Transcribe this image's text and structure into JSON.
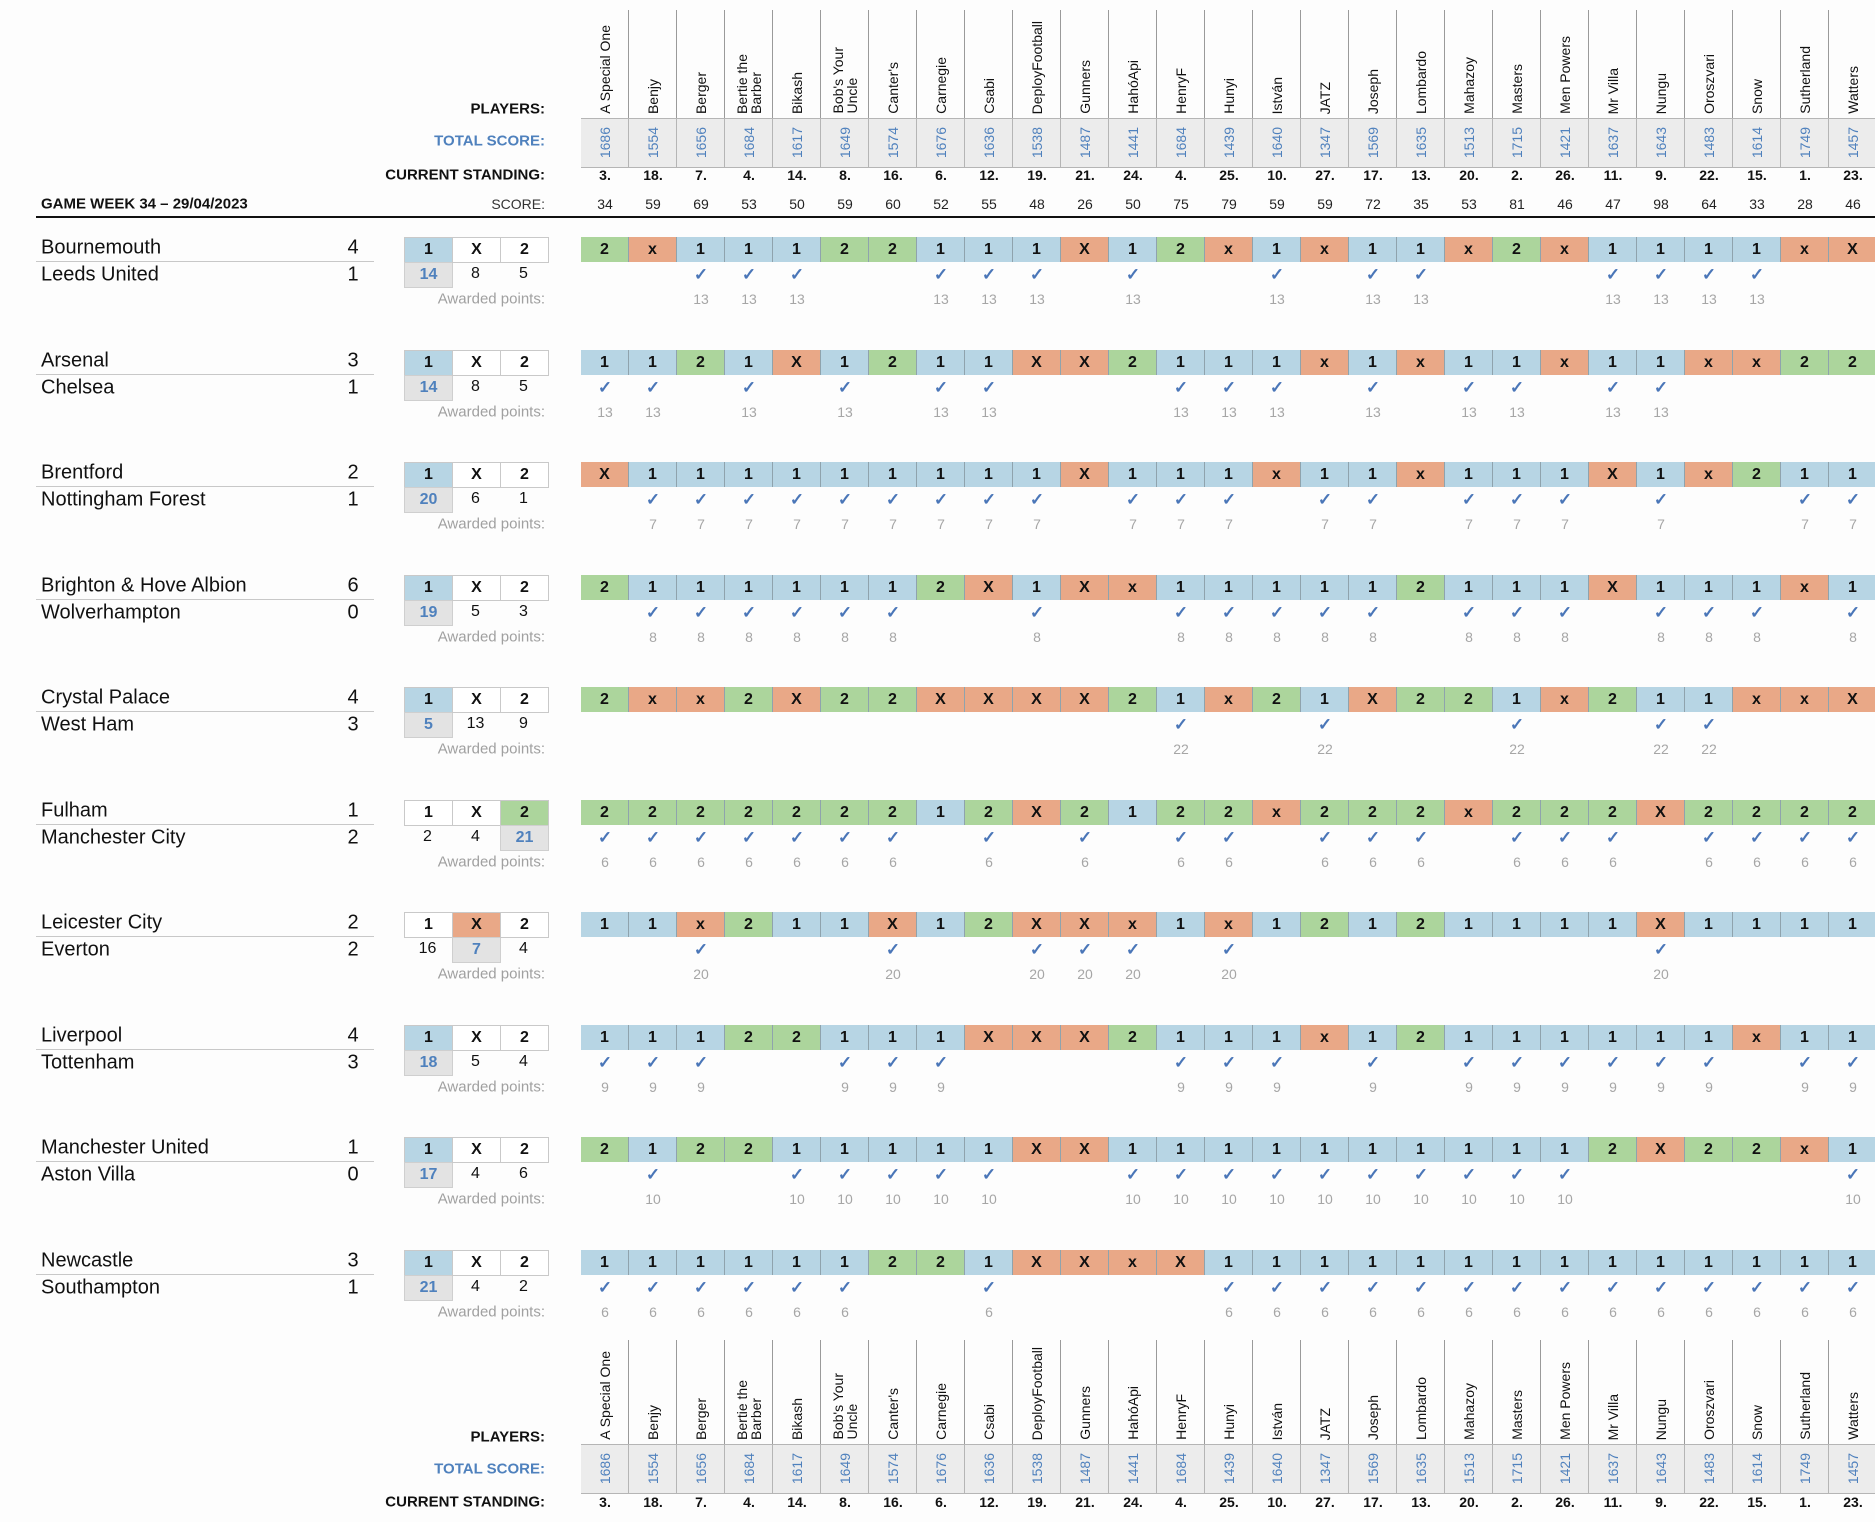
{
  "labels": {
    "players": "PLAYERS:",
    "total_score": "TOTAL SCORE:",
    "current_standing": "CURRENT STANDING:",
    "score": "SCORE:",
    "game_week": "GAME WEEK 34 – 29/04/2023",
    "awarded_points": "Awarded points:"
  },
  "colors": {
    "pick_1": "#b7d5e4",
    "pick_X": "#e9a887",
    "pick_2": "#acd59c",
    "total_score": "#4f81bd",
    "check": "#4a76b8"
  },
  "pick_options": [
    "1",
    "X",
    "2"
  ],
  "players": [
    {
      "name": "A Special One",
      "total": "1686",
      "standing": "3.",
      "score": "34"
    },
    {
      "name": "Benjy",
      "total": "1554",
      "standing": "18.",
      "score": "59"
    },
    {
      "name": "Berger",
      "total": "1656",
      "standing": "7.",
      "score": "69"
    },
    {
      "name": "Bertie the\nBarber",
      "total": "1684",
      "standing": "4.",
      "score": "53"
    },
    {
      "name": "Bikash",
      "total": "1617",
      "standing": "14.",
      "score": "50"
    },
    {
      "name": "Bob's Your\nUncle",
      "total": "1649",
      "standing": "8.",
      "score": "59"
    },
    {
      "name": "Canter's",
      "total": "1574",
      "standing": "16.",
      "score": "60"
    },
    {
      "name": "Carnegie",
      "total": "1676",
      "standing": "6.",
      "score": "52"
    },
    {
      "name": "Csabi",
      "total": "1636",
      "standing": "12.",
      "score": "55"
    },
    {
      "name": "DeployFootball",
      "total": "1538",
      "standing": "19.",
      "score": "48"
    },
    {
      "name": "Gunners",
      "total": "1487",
      "standing": "21.",
      "score": "26"
    },
    {
      "name": "HahóApi",
      "total": "1441",
      "standing": "24.",
      "score": "50"
    },
    {
      "name": "HenryF",
      "total": "1684",
      "standing": "4.",
      "score": "75"
    },
    {
      "name": "Hunyi",
      "total": "1439",
      "standing": "25.",
      "score": "79"
    },
    {
      "name": "István",
      "total": "1640",
      "standing": "10.",
      "score": "59"
    },
    {
      "name": "JATZ",
      "total": "1347",
      "standing": "27.",
      "score": "59"
    },
    {
      "name": "Joseph",
      "total": "1569",
      "standing": "17.",
      "score": "72"
    },
    {
      "name": "Lombardo",
      "total": "1635",
      "standing": "13.",
      "score": "35"
    },
    {
      "name": "Mahazoy",
      "total": "1513",
      "standing": "20.",
      "score": "53"
    },
    {
      "name": "Masters",
      "total": "1715",
      "standing": "2.",
      "score": "81"
    },
    {
      "name": "Men Powers",
      "total": "1421",
      "standing": "26.",
      "score": "46"
    },
    {
      "name": "Mr Villa",
      "total": "1637",
      "standing": "11.",
      "score": "47"
    },
    {
      "name": "Nungu",
      "total": "1643",
      "standing": "9.",
      "score": "98"
    },
    {
      "name": "Oroszvari",
      "total": "1483",
      "standing": "22.",
      "score": "64"
    },
    {
      "name": "Snow",
      "total": "1614",
      "standing": "15.",
      "score": "33"
    },
    {
      "name": "Sutherland",
      "total": "1749",
      "standing": "1.",
      "score": "28"
    },
    {
      "name": "Watters",
      "total": "1457",
      "standing": "23.",
      "score": "46"
    }
  ],
  "matches": [
    {
      "home": "Bournemouth",
      "away": "Leeds United",
      "home_goals": "4",
      "away_goals": "1",
      "result": "1",
      "counts": [
        "14",
        "8",
        "5"
      ],
      "points": "13",
      "picks": [
        "2",
        "x",
        "1",
        "1",
        "1",
        "2",
        "2",
        "1",
        "1",
        "1",
        "X",
        "1",
        "2",
        "x",
        "1",
        "x",
        "1",
        "1",
        "x",
        "2",
        "x",
        "1",
        "1",
        "1",
        "1",
        "x",
        "X"
      ]
    },
    {
      "home": "Arsenal",
      "away": "Chelsea",
      "home_goals": "3",
      "away_goals": "1",
      "result": "1",
      "counts": [
        "14",
        "8",
        "5"
      ],
      "points": "13",
      "picks": [
        "1",
        "1",
        "2",
        "1",
        "X",
        "1",
        "2",
        "1",
        "1",
        "X",
        "X",
        "2",
        "1",
        "1",
        "1",
        "x",
        "1",
        "x",
        "1",
        "1",
        "x",
        "1",
        "1",
        "x",
        "x",
        "2",
        "2"
      ]
    },
    {
      "home": "Brentford",
      "away": "Nottingham Forest",
      "home_goals": "2",
      "away_goals": "1",
      "result": "1",
      "counts": [
        "20",
        "6",
        "1"
      ],
      "points": "7",
      "picks": [
        "X",
        "1",
        "1",
        "1",
        "1",
        "1",
        "1",
        "1",
        "1",
        "1",
        "X",
        "1",
        "1",
        "1",
        "x",
        "1",
        "1",
        "x",
        "1",
        "1",
        "1",
        "X",
        "1",
        "x",
        "2",
        "1",
        "1"
      ]
    },
    {
      "home": "Brighton & Hove Albion",
      "away": "Wolverhampton",
      "home_goals": "6",
      "away_goals": "0",
      "result": "1",
      "counts": [
        "19",
        "5",
        "3"
      ],
      "points": "8",
      "picks": [
        "2",
        "1",
        "1",
        "1",
        "1",
        "1",
        "1",
        "2",
        "X",
        "1",
        "X",
        "x",
        "1",
        "1",
        "1",
        "1",
        "1",
        "2",
        "1",
        "1",
        "1",
        "X",
        "1",
        "1",
        "1",
        "x",
        "1"
      ]
    },
    {
      "home": "Crystal Palace",
      "away": "West Ham",
      "home_goals": "4",
      "away_goals": "3",
      "result": "1",
      "counts": [
        "5",
        "13",
        "9"
      ],
      "points": "22",
      "picks": [
        "2",
        "x",
        "x",
        "2",
        "X",
        "2",
        "2",
        "X",
        "X",
        "X",
        "X",
        "2",
        "1",
        "x",
        "2",
        "1",
        "X",
        "2",
        "2",
        "1",
        "x",
        "2",
        "1",
        "1",
        "x",
        "x",
        "X"
      ]
    },
    {
      "home": "Fulham",
      "away": "Manchester City",
      "home_goals": "1",
      "away_goals": "2",
      "result": "2",
      "counts": [
        "2",
        "4",
        "21"
      ],
      "points": "6",
      "picks": [
        "2",
        "2",
        "2",
        "2",
        "2",
        "2",
        "2",
        "1",
        "2",
        "X",
        "2",
        "1",
        "2",
        "2",
        "x",
        "2",
        "2",
        "2",
        "x",
        "2",
        "2",
        "2",
        "X",
        "2",
        "2",
        "2",
        "2"
      ]
    },
    {
      "home": "Leicester City",
      "away": "Everton",
      "home_goals": "2",
      "away_goals": "2",
      "result": "X",
      "counts": [
        "16",
        "7",
        "4"
      ],
      "points": "20",
      "picks": [
        "1",
        "1",
        "x",
        "2",
        "1",
        "1",
        "X",
        "1",
        "2",
        "X",
        "X",
        "x",
        "1",
        "x",
        "1",
        "2",
        "1",
        "2",
        "1",
        "1",
        "1",
        "1",
        "X",
        "1",
        "1",
        "1",
        "1"
      ]
    },
    {
      "home": "Liverpool",
      "away": "Tottenham",
      "home_goals": "4",
      "away_goals": "3",
      "result": "1",
      "counts": [
        "18",
        "5",
        "4"
      ],
      "points": "9",
      "picks": [
        "1",
        "1",
        "1",
        "2",
        "2",
        "1",
        "1",
        "1",
        "X",
        "X",
        "X",
        "2",
        "1",
        "1",
        "1",
        "x",
        "1",
        "2",
        "1",
        "1",
        "1",
        "1",
        "1",
        "1",
        "x",
        "1",
        "1"
      ]
    },
    {
      "home": "Manchester United",
      "away": "Aston Villa",
      "home_goals": "1",
      "away_goals": "0",
      "result": "1",
      "counts": [
        "17",
        "4",
        "6"
      ],
      "points": "10",
      "picks": [
        "2",
        "1",
        "2",
        "2",
        "1",
        "1",
        "1",
        "1",
        "1",
        "X",
        "X",
        "1",
        "1",
        "1",
        "1",
        "1",
        "1",
        "1",
        "1",
        "1",
        "1",
        "2",
        "X",
        "2",
        "2",
        "x",
        "1"
      ]
    },
    {
      "home": "Newcastle",
      "away": "Southampton",
      "home_goals": "3",
      "away_goals": "1",
      "result": "1",
      "counts": [
        "21",
        "4",
        "2"
      ],
      "points": "6",
      "picks": [
        "1",
        "1",
        "1",
        "1",
        "1",
        "1",
        "2",
        "2",
        "1",
        "X",
        "X",
        "x",
        "X",
        "1",
        "1",
        "1",
        "1",
        "1",
        "1",
        "1",
        "1",
        "1",
        "1",
        "1",
        "1",
        "1",
        "1"
      ]
    }
  ]
}
